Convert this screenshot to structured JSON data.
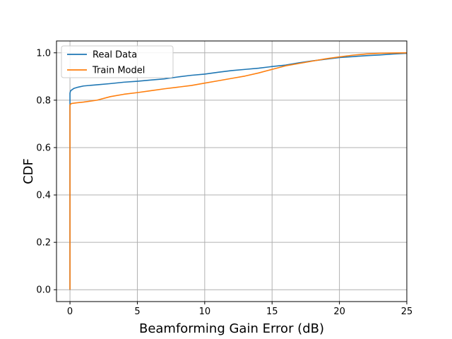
{
  "chart_data": {
    "type": "line",
    "xlabel": "Beamforming Gain Error (dB)",
    "ylabel": "CDF",
    "xlim": [
      -1,
      25
    ],
    "ylim": [
      -0.05,
      1.05
    ],
    "xticks": [
      0,
      5,
      10,
      15,
      20,
      25
    ],
    "xtick_labels": [
      "0",
      "5",
      "10",
      "15",
      "20",
      "25"
    ],
    "yticks": [
      0.0,
      0.2,
      0.4,
      0.6,
      0.8,
      1.0
    ],
    "ytick_labels": [
      "0.0",
      "0.2",
      "0.4",
      "0.6",
      "0.8",
      "1.0"
    ],
    "grid": true,
    "legend_position": "top-left",
    "series": [
      {
        "name": "Real Data",
        "color": "#1f77b4",
        "x": [
          0,
          0,
          0.05,
          0.3,
          0.6,
          1,
          2,
          3,
          4,
          5,
          6,
          7,
          8,
          9,
          10,
          11,
          12,
          13,
          14,
          15,
          16,
          17,
          18,
          19,
          20,
          21,
          22,
          23,
          24,
          25
        ],
        "y": [
          0.0,
          0.83,
          0.84,
          0.85,
          0.855,
          0.86,
          0.865,
          0.87,
          0.876,
          0.88,
          0.885,
          0.89,
          0.898,
          0.905,
          0.91,
          0.918,
          0.925,
          0.93,
          0.935,
          0.942,
          0.948,
          0.958,
          0.966,
          0.973,
          0.98,
          0.984,
          0.988,
          0.991,
          0.995,
          0.998
        ]
      },
      {
        "name": "Train Model",
        "color": "#ff7f0e",
        "x": [
          0,
          0,
          0.1,
          0.5,
          1,
          2,
          3,
          4,
          5,
          6,
          7,
          8,
          9,
          10,
          11,
          12,
          13,
          14,
          15,
          16,
          17,
          18,
          19,
          20,
          21,
          22,
          23,
          24,
          25
        ],
        "y": [
          0.0,
          0.78,
          0.786,
          0.789,
          0.792,
          0.8,
          0.815,
          0.825,
          0.832,
          0.84,
          0.848,
          0.855,
          0.862,
          0.872,
          0.882,
          0.892,
          0.902,
          0.915,
          0.93,
          0.945,
          0.955,
          0.965,
          0.975,
          0.983,
          0.99,
          0.995,
          0.998,
          0.999,
          1.0
        ]
      }
    ]
  }
}
